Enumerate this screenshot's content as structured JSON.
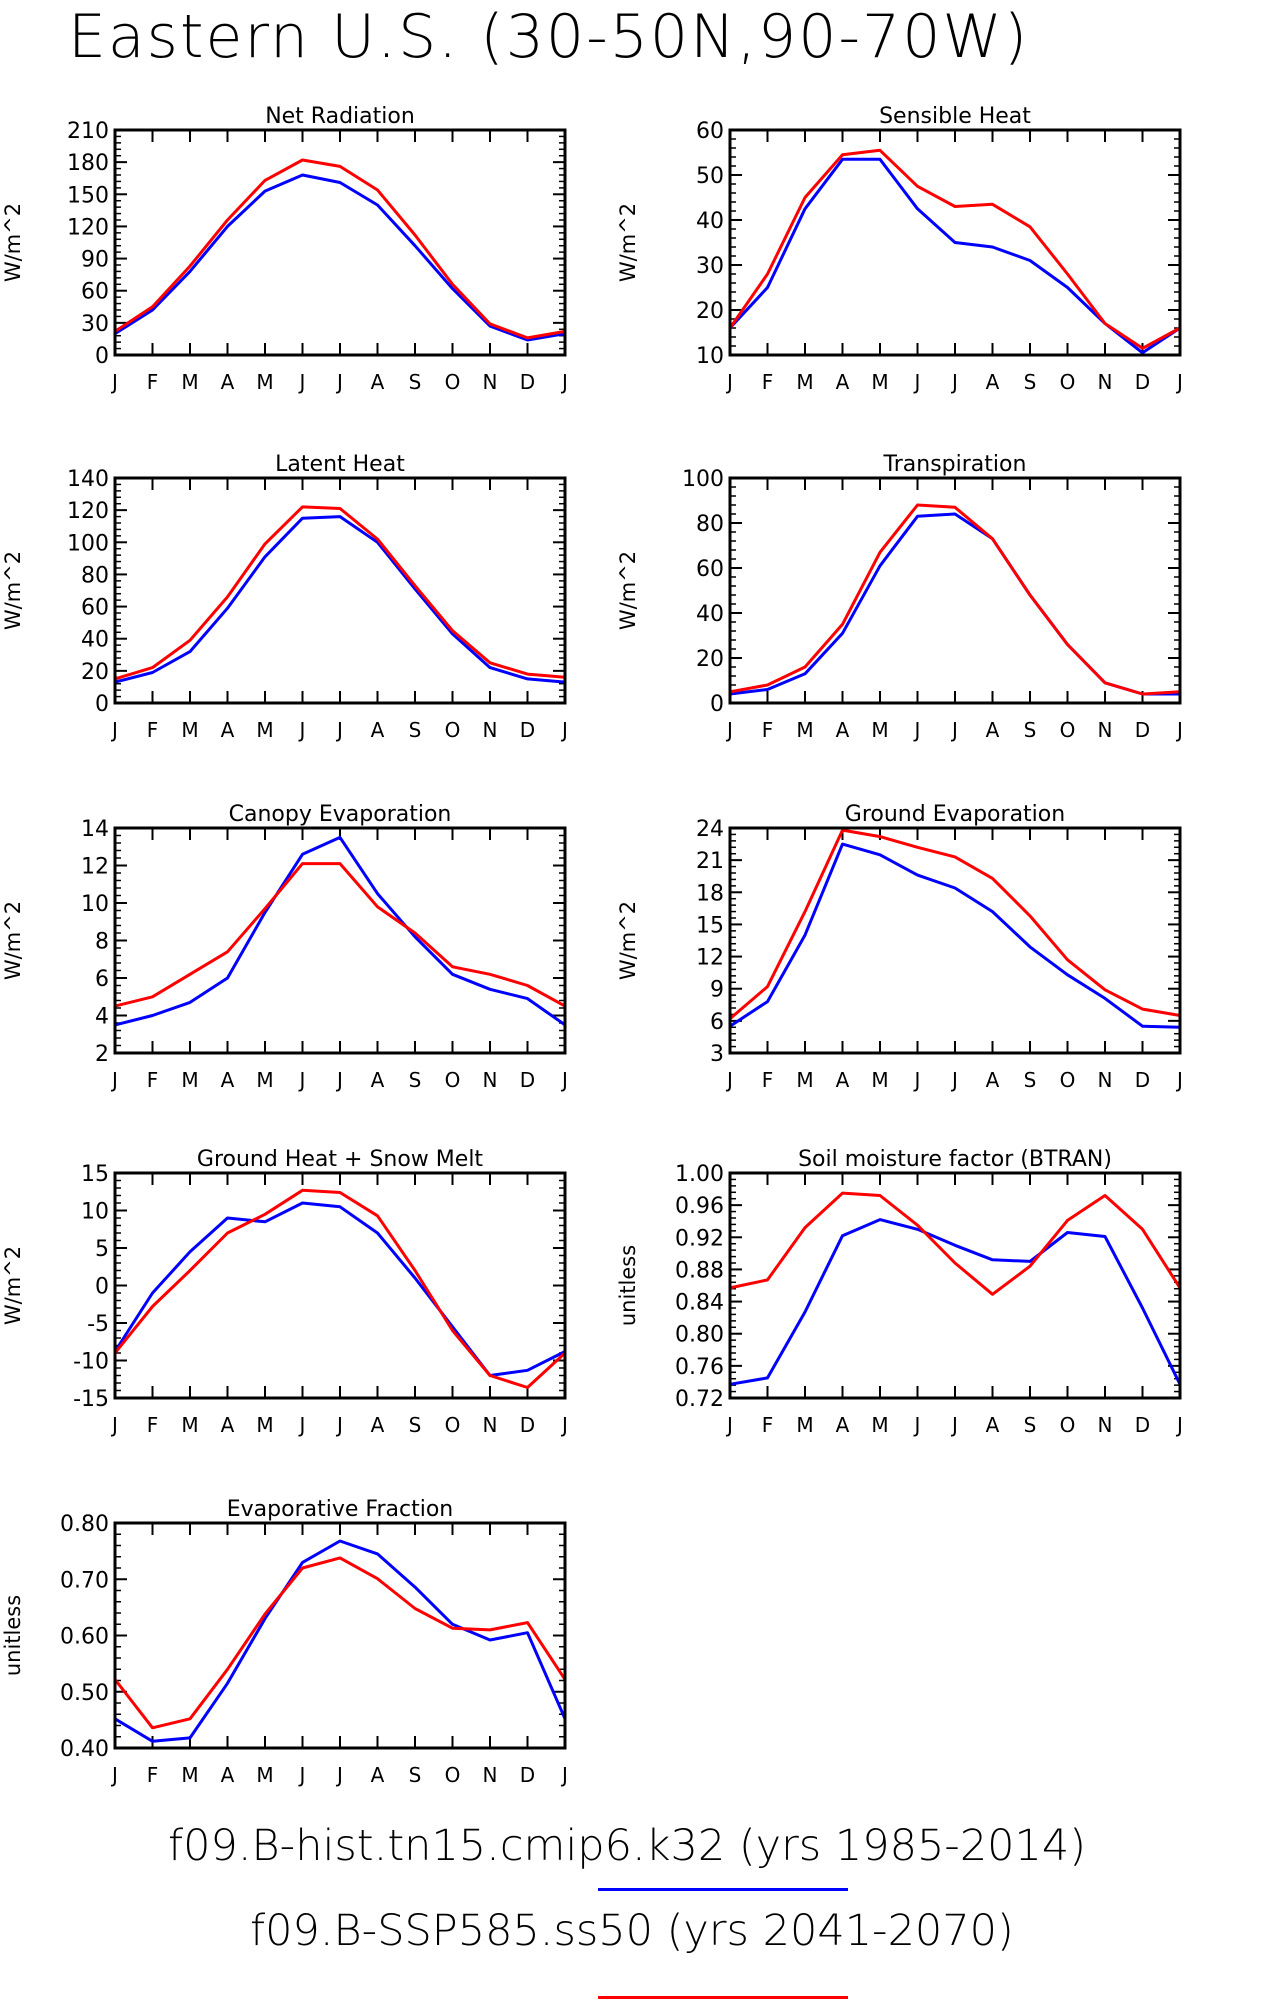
{
  "title": "Eastern U.S. (30-50N,90-70W)",
  "months": [
    "J",
    "F",
    "M",
    "A",
    "M",
    "J",
    "J",
    "A",
    "S",
    "O",
    "N",
    "D",
    "J"
  ],
  "colors": {
    "historical": "#0000ff",
    "future": "#ff0000"
  },
  "legend": [
    {
      "label": "f09.B-hist.tn15.cmip6.k32 (yrs 1985-2014)",
      "color": "#0000ff"
    },
    {
      "label": "f09.B-SSP585.ss50 (yrs 2041-2070)",
      "color": "#ff0000"
    }
  ],
  "chart_data": [
    {
      "type": "line",
      "title": "Net Radiation",
      "ylabel": "W/m^2",
      "ylim": [
        0,
        210
      ],
      "yticks": [
        0,
        30,
        60,
        90,
        120,
        150,
        180,
        210
      ],
      "series": [
        {
          "color": "#0000ff",
          "values": [
            20,
            42,
            78,
            120,
            153,
            168,
            161,
            140,
            102,
            62,
            27,
            14,
            20
          ]
        },
        {
          "color": "#ff0000",
          "values": [
            22,
            45,
            83,
            126,
            163,
            182,
            176,
            154,
            112,
            66,
            29,
            16,
            22
          ]
        }
      ]
    },
    {
      "type": "line",
      "title": "Sensible Heat",
      "ylabel": "W/m^2",
      "ylim": [
        10,
        60
      ],
      "yticks": [
        10,
        20,
        30,
        40,
        50,
        60
      ],
      "series": [
        {
          "color": "#0000ff",
          "values": [
            16,
            25,
            42.5,
            53.5,
            53.5,
            42.5,
            35,
            34,
            31,
            25,
            17,
            10.5,
            16
          ]
        },
        {
          "color": "#ff0000",
          "values": [
            16,
            28,
            45,
            54.5,
            55.5,
            47.5,
            43,
            43.5,
            38.5,
            28,
            17,
            11.5,
            16
          ]
        }
      ]
    },
    {
      "type": "line",
      "title": "Latent Heat",
      "ylabel": "W/m^2",
      "ylim": [
        0,
        140
      ],
      "yticks": [
        0,
        20,
        40,
        60,
        80,
        100,
        120,
        140
      ],
      "series": [
        {
          "color": "#0000ff",
          "values": [
            13,
            19,
            32,
            59,
            91,
            115,
            116,
            100,
            71,
            43,
            22,
            15,
            13
          ]
        },
        {
          "color": "#ff0000",
          "values": [
            15,
            22,
            39,
            66,
            99,
            122,
            121,
            102,
            73,
            45,
            25,
            18,
            16
          ]
        }
      ]
    },
    {
      "type": "line",
      "title": "Transpiration",
      "ylabel": "W/m^2",
      "ylim": [
        0,
        100
      ],
      "yticks": [
        0,
        20,
        40,
        60,
        80,
        100
      ],
      "series": [
        {
          "color": "#0000ff",
          "values": [
            4,
            6,
            13,
            31,
            61,
            83,
            84,
            73,
            48,
            26,
            9,
            4,
            4
          ]
        },
        {
          "color": "#ff0000",
          "values": [
            5,
            8,
            16,
            35,
            67,
            88,
            87,
            73,
            48,
            26,
            9,
            4,
            5
          ]
        }
      ]
    },
    {
      "type": "line",
      "title": "Canopy Evaporation",
      "ylabel": "W/m^2",
      "ylim": [
        2,
        14
      ],
      "yticks": [
        2,
        4,
        6,
        8,
        10,
        12,
        14
      ],
      "series": [
        {
          "color": "#0000ff",
          "values": [
            3.5,
            4,
            4.7,
            6,
            9.5,
            12.6,
            13.5,
            10.5,
            8.2,
            6.2,
            5.4,
            4.9,
            3.5
          ]
        },
        {
          "color": "#ff0000",
          "values": [
            4.5,
            5,
            6.2,
            7.4,
            9.7,
            12.1,
            12.1,
            9.8,
            8.4,
            6.6,
            6.2,
            5.6,
            4.5
          ]
        }
      ]
    },
    {
      "type": "line",
      "title": "Ground Evaporation",
      "ylabel": "W/m^2",
      "ylim": [
        3,
        24
      ],
      "yticks": [
        3,
        6,
        9,
        12,
        15,
        18,
        21,
        24
      ],
      "series": [
        {
          "color": "#0000ff",
          "values": [
            5.5,
            7.8,
            14,
            22.5,
            21.5,
            19.6,
            18.4,
            16.2,
            12.9,
            10.3,
            8.1,
            5.5,
            5.4
          ]
        },
        {
          "color": "#ff0000",
          "values": [
            6.2,
            9.2,
            16.2,
            23.8,
            23.2,
            22.2,
            21.3,
            19.3,
            15.8,
            11.7,
            8.9,
            7.1,
            6.5
          ]
        }
      ]
    },
    {
      "type": "line",
      "title": "Ground Heat + Snow Melt",
      "ylabel": "W/m^2",
      "ylim": [
        -15,
        15
      ],
      "yticks": [
        -15,
        -10,
        -5,
        0,
        5,
        10,
        15
      ],
      "series": [
        {
          "color": "#0000ff",
          "values": [
            -8.8,
            -1,
            4.5,
            9,
            8.5,
            11,
            10.5,
            7,
            1,
            -5.5,
            -12,
            -11.3,
            -8.8
          ]
        },
        {
          "color": "#ff0000",
          "values": [
            -9,
            -2.8,
            2,
            7,
            9.5,
            12.7,
            12.4,
            9.3,
            2,
            -6,
            -12,
            -13.6,
            -9
          ]
        }
      ]
    },
    {
      "type": "line",
      "title": "Soil moisture factor (BTRAN)",
      "ylabel": "unitless",
      "ylim": [
        0.72,
        1.0
      ],
      "yticks": [
        0.72,
        0.76,
        0.8,
        0.84,
        0.88,
        0.92,
        0.96,
        1.0
      ],
      "series": [
        {
          "color": "#0000ff",
          "values": [
            0.737,
            0.745,
            0.827,
            0.922,
            0.942,
            0.93,
            0.91,
            0.892,
            0.89,
            0.926,
            0.921,
            0.832,
            0.737
          ]
        },
        {
          "color": "#ff0000",
          "values": [
            0.857,
            0.867,
            0.932,
            0.975,
            0.972,
            0.935,
            0.888,
            0.849,
            0.884,
            0.941,
            0.972,
            0.93,
            0.857
          ]
        }
      ]
    },
    {
      "type": "line",
      "title": "Evaporative Fraction",
      "ylabel": "unitless",
      "ylim": [
        0.4,
        0.8
      ],
      "yticks": [
        0.4,
        0.5,
        0.6,
        0.7,
        0.8
      ],
      "series": [
        {
          "color": "#0000ff",
          "values": [
            0.452,
            0.412,
            0.418,
            0.515,
            0.63,
            0.73,
            0.768,
            0.745,
            0.686,
            0.62,
            0.592,
            0.605,
            0.452
          ]
        },
        {
          "color": "#ff0000",
          "values": [
            0.522,
            0.436,
            0.452,
            0.54,
            0.638,
            0.72,
            0.738,
            0.701,
            0.648,
            0.613,
            0.61,
            0.623,
            0.522
          ]
        }
      ]
    }
  ]
}
